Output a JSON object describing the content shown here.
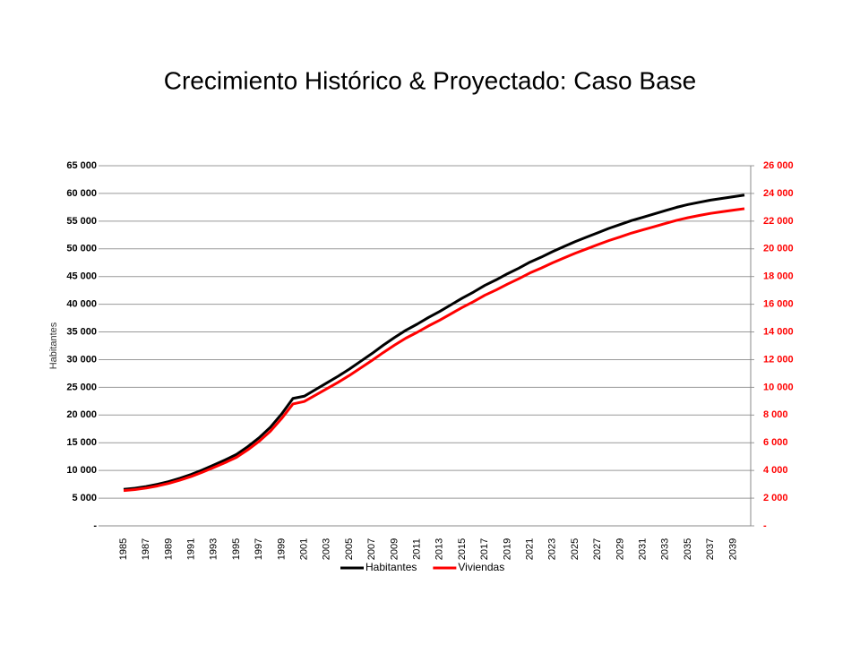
{
  "chart_data": {
    "type": "line",
    "title": "Crecimiento Histórico & Proyectado: Caso Base",
    "y_label": "Habitantes",
    "categories": [
      "1985",
      null,
      "1987",
      null,
      "1989",
      null,
      "1991",
      null,
      "1993",
      null,
      "1995",
      null,
      "1997",
      null,
      "1999",
      null,
      "2001",
      null,
      "2003",
      null,
      "2005",
      null,
      "2007",
      null,
      "2009",
      null,
      "2011",
      null,
      "2013",
      null,
      "2015",
      null,
      "2017",
      null,
      "2019",
      null,
      "2021",
      null,
      "2023",
      null,
      "2025",
      null,
      "2027",
      null,
      "2029",
      null,
      "2031",
      null,
      "2033",
      null,
      "2035",
      null,
      "2037",
      null,
      "2039",
      null
    ],
    "series": [
      {
        "name": "Habitantes",
        "color": "#000000",
        "axis": "y",
        "values": [
          6600,
          6800,
          7100,
          7500,
          8000,
          8600,
          9300,
          10100,
          11000,
          11900,
          12900,
          14300,
          15900,
          17800,
          20200,
          23000,
          23400,
          24600,
          25800,
          27000,
          28300,
          29700,
          31100,
          32600,
          34000,
          35300,
          36400,
          37600,
          38700,
          39900,
          41100,
          42200,
          43400,
          44400,
          45500,
          46500,
          47600,
          48500,
          49500,
          50400,
          51300,
          52100,
          52900,
          53700,
          54400,
          55100,
          55700,
          56300,
          56900,
          57500,
          58000,
          58400,
          58800,
          59100,
          59400,
          59700
        ]
      },
      {
        "name": "Viviendas",
        "color": "#ff0000",
        "axis": "y2",
        "values": [
          2550,
          2620,
          2730,
          2880,
          3070,
          3300,
          3570,
          3880,
          4220,
          4570,
          4950,
          5490,
          6100,
          6830,
          7750,
          8800,
          8980,
          9440,
          9900,
          10360,
          10860,
          11400,
          11940,
          12510,
          13050,
          13550,
          13970,
          14430,
          14850,
          15310,
          15770,
          16190,
          16650,
          17030,
          17450,
          17840,
          18260,
          18610,
          18990,
          19340,
          19680,
          19990,
          20300,
          20600,
          20860,
          21140,
          21370,
          21600,
          21830,
          22060,
          22250,
          22410,
          22560,
          22680,
          22790,
          22900
        ]
      }
    ],
    "ylim": [
      0,
      65000
    ],
    "yticks": [
      {
        "value": 0,
        "label": "-"
      },
      {
        "value": 5000,
        "label": "5 000"
      },
      {
        "value": 10000,
        "label": "10 000"
      },
      {
        "value": 15000,
        "label": "15 000"
      },
      {
        "value": 20000,
        "label": "20 000"
      },
      {
        "value": 25000,
        "label": "25 000"
      },
      {
        "value": 30000,
        "label": "30 000"
      },
      {
        "value": 35000,
        "label": "35 000"
      },
      {
        "value": 40000,
        "label": "40 000"
      },
      {
        "value": 45000,
        "label": "45 000"
      },
      {
        "value": 50000,
        "label": "50 000"
      },
      {
        "value": 55000,
        "label": "55 000"
      },
      {
        "value": 60000,
        "label": "60 000"
      },
      {
        "value": 65000,
        "label": "65 000"
      }
    ],
    "y2lim": [
      0,
      26000
    ],
    "y2ticks": [
      {
        "value": 0,
        "label": "-"
      },
      {
        "value": 2000,
        "label": "2 000"
      },
      {
        "value": 4000,
        "label": "4 000"
      },
      {
        "value": 6000,
        "label": "6 000"
      },
      {
        "value": 8000,
        "label": "8 000"
      },
      {
        "value": 10000,
        "label": "10 000"
      },
      {
        "value": 12000,
        "label": "12 000"
      },
      {
        "value": 14000,
        "label": "14 000"
      },
      {
        "value": 16000,
        "label": "16 000"
      },
      {
        "value": 18000,
        "label": "18 000"
      },
      {
        "value": 20000,
        "label": "20 000"
      },
      {
        "value": 22000,
        "label": "22 000"
      },
      {
        "value": 24000,
        "label": "24 000"
      },
      {
        "value": 26000,
        "label": "26 000"
      }
    ],
    "y2_color": "#ff0000",
    "grid": true,
    "legend": "bottom"
  }
}
